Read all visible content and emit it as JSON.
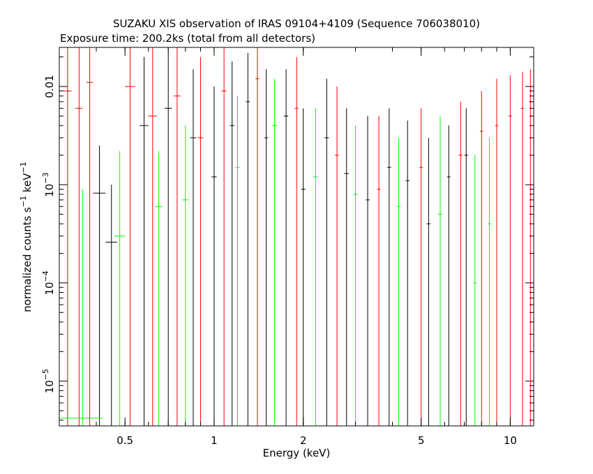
{
  "chart_data": {
    "type": "scatter",
    "title": "SUZAKU XIS observation of IRAS 09104+4109 (Sequence 706038010)",
    "subtitle": "Exposure time: 200.2ks (total from all detectors)",
    "xlabel": "Energy (keV)",
    "ylabel_base": "normalized counts s",
    "ylabel_mid": " keV",
    "ylabel_exp": "−1",
    "x_scale": "log",
    "y_scale": "log",
    "xlim": [
      0.3,
      12
    ],
    "ylim": [
      3.5e-06,
      0.025
    ],
    "x_ticks": [
      {
        "value": 0.5,
        "label": "0.5"
      },
      {
        "value": 1,
        "label": "1"
      },
      {
        "value": 2,
        "label": "2"
      },
      {
        "value": 5,
        "label": "5"
      },
      {
        "value": 10,
        "label": "10"
      }
    ],
    "y_ticks": [
      {
        "value": 0.01,
        "mant": "0.01",
        "exp": ""
      },
      {
        "value": 0.001,
        "mant": "10",
        "exp": "−3"
      },
      {
        "value": 0.0001,
        "mant": "10",
        "exp": "−4"
      },
      {
        "value": 1e-05,
        "mant": "10",
        "exp": "−5"
      }
    ],
    "grid": false,
    "series": [
      {
        "color": "#000000",
        "points": [
          {
            "x": 0.41,
            "xlo": 0.39,
            "xhi": 0.43,
            "y": 0.00082,
            "ylo": 3.5e-06,
            "yhi": 0.0025
          },
          {
            "x": 0.45,
            "xlo": 0.43,
            "xhi": 0.47,
            "y": 0.00026,
            "ylo": 3.5e-06,
            "yhi": 0.001
          },
          {
            "x": 0.58,
            "xlo": 0.56,
            "xhi": 0.6,
            "y": 0.004,
            "ylo": 3.5e-06,
            "yhi": 0.02
          },
          {
            "x": 0.7,
            "xlo": 0.68,
            "xhi": 0.72,
            "y": 0.006,
            "ylo": 3.5e-06,
            "yhi": 0.025
          },
          {
            "x": 0.85,
            "xlo": 0.83,
            "xhi": 0.87,
            "y": 0.003,
            "ylo": 3.5e-06,
            "yhi": 0.015
          },
          {
            "x": 1.0,
            "xlo": 0.98,
            "xhi": 1.02,
            "y": 0.0012,
            "ylo": 3.5e-06,
            "yhi": 0.01
          },
          {
            "x": 1.15,
            "xlo": 1.13,
            "xhi": 1.17,
            "y": 0.004,
            "ylo": 3.5e-06,
            "yhi": 0.018
          },
          {
            "x": 1.3,
            "xlo": 1.28,
            "xhi": 1.32,
            "y": 0.007,
            "ylo": 3.5e-06,
            "yhi": 0.022
          },
          {
            "x": 1.5,
            "xlo": 1.48,
            "xhi": 1.52,
            "y": 0.003,
            "ylo": 3.5e-06,
            "yhi": 0.015
          },
          {
            "x": 1.75,
            "xlo": 1.72,
            "xhi": 1.78,
            "y": 0.005,
            "ylo": 3.5e-06,
            "yhi": 0.015
          },
          {
            "x": 2.0,
            "xlo": 1.97,
            "xhi": 2.03,
            "y": 0.0009,
            "ylo": 3.5e-06,
            "yhi": 0.006
          },
          {
            "x": 2.4,
            "xlo": 2.36,
            "xhi": 2.44,
            "y": 0.003,
            "ylo": 3.5e-06,
            "yhi": 0.012
          },
          {
            "x": 2.8,
            "xlo": 2.75,
            "xhi": 2.85,
            "y": 0.0013,
            "ylo": 3.5e-06,
            "yhi": 0.006
          },
          {
            "x": 3.3,
            "xlo": 3.25,
            "xhi": 3.35,
            "y": 0.0007,
            "ylo": 3.5e-06,
            "yhi": 0.005
          },
          {
            "x": 3.9,
            "xlo": 3.84,
            "xhi": 3.96,
            "y": 0.0015,
            "ylo": 3.5e-06,
            "yhi": 0.006
          },
          {
            "x": 4.5,
            "xlo": 4.43,
            "xhi": 4.57,
            "y": 0.0011,
            "ylo": 3.5e-06,
            "yhi": 0.0045
          },
          {
            "x": 5.3,
            "xlo": 5.22,
            "xhi": 5.38,
            "y": 0.0004,
            "ylo": 3.5e-06,
            "yhi": 0.003
          },
          {
            "x": 6.2,
            "xlo": 6.12,
            "xhi": 6.28,
            "y": 0.0012,
            "ylo": 3.5e-06,
            "yhi": 0.004
          },
          {
            "x": 7.1,
            "xlo": 7.0,
            "xhi": 7.2,
            "y": 0.002,
            "ylo": 3.5e-06,
            "yhi": 0.006
          }
        ]
      },
      {
        "color": "#ff0000",
        "points": [
          {
            "x": 0.32,
            "xlo": 0.31,
            "xhi": 0.33,
            "y": 0.009,
            "ylo": 3.5e-06,
            "yhi": 0.025
          },
          {
            "x": 0.35,
            "xlo": 0.34,
            "xhi": 0.36,
            "y": 0.006,
            "ylo": 3.5e-06,
            "yhi": 0.025
          },
          {
            "x": 0.38,
            "xlo": 0.37,
            "xhi": 0.39,
            "y": 0.011,
            "ylo": 3.5e-06,
            "yhi": 0.025
          },
          {
            "x": 0.52,
            "xlo": 0.5,
            "xhi": 0.54,
            "y": 0.01,
            "ylo": 3.5e-06,
            "yhi": 0.025
          },
          {
            "x": 0.62,
            "xlo": 0.6,
            "xhi": 0.64,
            "y": 0.005,
            "ylo": 3.5e-06,
            "yhi": 0.025
          },
          {
            "x": 0.75,
            "xlo": 0.73,
            "xhi": 0.77,
            "y": 0.008,
            "ylo": 3.5e-06,
            "yhi": 0.025
          },
          {
            "x": 0.9,
            "xlo": 0.88,
            "xhi": 0.92,
            "y": 0.003,
            "ylo": 3.5e-06,
            "yhi": 0.02
          },
          {
            "x": 1.08,
            "xlo": 1.06,
            "xhi": 1.1,
            "y": 0.009,
            "ylo": 3.5e-06,
            "yhi": 0.025
          },
          {
            "x": 1.4,
            "xlo": 1.38,
            "xhi": 1.42,
            "y": 0.012,
            "ylo": 3.5e-06,
            "yhi": 0.025
          },
          {
            "x": 1.9,
            "xlo": 1.87,
            "xhi": 1.93,
            "y": 0.006,
            "ylo": 3.5e-06,
            "yhi": 0.02
          },
          {
            "x": 2.6,
            "xlo": 2.56,
            "xhi": 2.64,
            "y": 0.002,
            "ylo": 3.5e-06,
            "yhi": 0.01
          },
          {
            "x": 3.6,
            "xlo": 3.55,
            "xhi": 3.65,
            "y": 0.0009,
            "ylo": 3.5e-06,
            "yhi": 0.005
          },
          {
            "x": 5.0,
            "xlo": 4.93,
            "xhi": 5.07,
            "y": 0.0015,
            "ylo": 3.5e-06,
            "yhi": 0.006
          },
          {
            "x": 6.8,
            "xlo": 6.7,
            "xhi": 6.9,
            "y": 0.002,
            "ylo": 3.5e-06,
            "yhi": 0.007
          },
          {
            "x": 8.0,
            "xlo": 7.9,
            "xhi": 8.1,
            "y": 0.0035,
            "ylo": 3.5e-06,
            "yhi": 0.009
          },
          {
            "x": 9.0,
            "xlo": 8.88,
            "xhi": 9.12,
            "y": 0.004,
            "ylo": 3.5e-06,
            "yhi": 0.012
          },
          {
            "x": 10.0,
            "xlo": 9.87,
            "xhi": 10.13,
            "y": 0.005,
            "ylo": 3.5e-06,
            "yhi": 0.013
          },
          {
            "x": 11.0,
            "xlo": 10.85,
            "xhi": 11.15,
            "y": 0.006,
            "ylo": 3.5e-06,
            "yhi": 0.014
          },
          {
            "x": 11.7,
            "xlo": 11.55,
            "xhi": 11.85,
            "y": 0.007,
            "ylo": 3.5e-06,
            "yhi": 0.015
          }
        ]
      },
      {
        "color": "#00ff00",
        "points": [
          {
            "x": 0.36,
            "xlo": 0.3,
            "xhi": 0.42,
            "y": 4.2e-06,
            "ylo": 3.5e-06,
            "yhi": 0.0009
          },
          {
            "x": 0.48,
            "xlo": 0.46,
            "xhi": 0.5,
            "y": 0.0003,
            "ylo": 3.5e-06,
            "yhi": 0.0022
          },
          {
            "x": 0.65,
            "xlo": 0.63,
            "xhi": 0.67,
            "y": 0.0006,
            "ylo": 3.5e-06,
            "yhi": 0.0022
          },
          {
            "x": 0.8,
            "xlo": 0.78,
            "xhi": 0.82,
            "y": 0.0007,
            "ylo": 3.5e-06,
            "yhi": 0.004
          },
          {
            "x": 1.2,
            "xlo": 1.18,
            "xhi": 1.22,
            "y": 0.0015,
            "ylo": 3.5e-06,
            "yhi": 0.008
          },
          {
            "x": 1.6,
            "xlo": 1.57,
            "xhi": 1.63,
            "y": 0.004,
            "ylo": 3.5e-06,
            "yhi": 0.012
          },
          {
            "x": 2.2,
            "xlo": 2.16,
            "xhi": 2.24,
            "y": 0.0012,
            "ylo": 3.5e-06,
            "yhi": 0.006
          },
          {
            "x": 3.0,
            "xlo": 2.95,
            "xhi": 3.05,
            "y": 0.0008,
            "ylo": 3.5e-06,
            "yhi": 0.004
          },
          {
            "x": 4.2,
            "xlo": 4.13,
            "xhi": 4.27,
            "y": 0.0006,
            "ylo": 3.5e-06,
            "yhi": 0.003
          },
          {
            "x": 5.8,
            "xlo": 5.71,
            "xhi": 5.89,
            "y": 0.0005,
            "ylo": 3.5e-06,
            "yhi": 0.005
          },
          {
            "x": 7.6,
            "xlo": 7.5,
            "xhi": 7.7,
            "y": 0.0001,
            "ylo": 3.5e-06,
            "yhi": 0.002
          },
          {
            "x": 8.5,
            "xlo": 8.38,
            "xhi": 8.62,
            "y": 0.0004,
            "ylo": 3.5e-06,
            "yhi": 0.003
          }
        ]
      }
    ]
  }
}
